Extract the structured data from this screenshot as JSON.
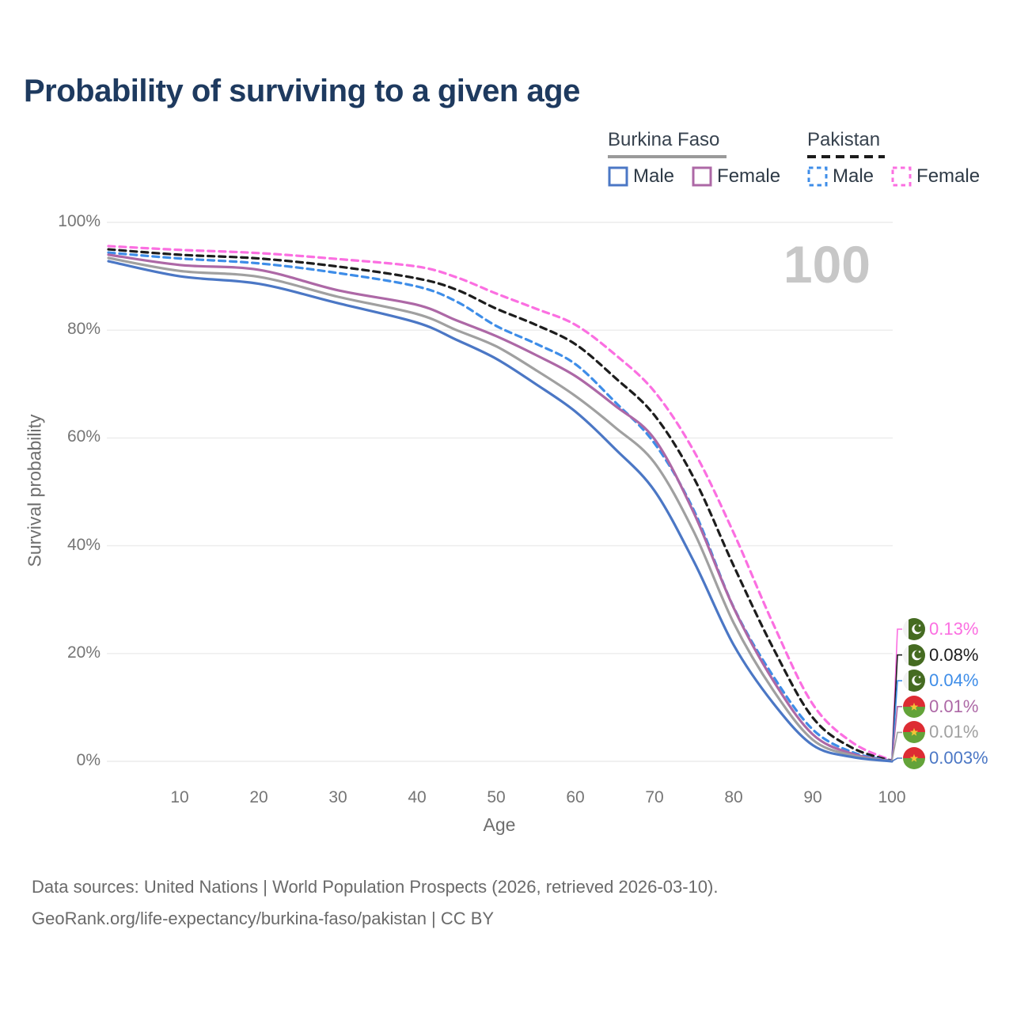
{
  "title": "Probability of surviving to a given age",
  "legend": {
    "groups": [
      {
        "country": "Burkina Faso",
        "line_style": "solid",
        "line_color": "#9a9a9a",
        "items": [
          {
            "label": "Male",
            "color": "#4b77c5",
            "dash": false
          },
          {
            "label": "Female",
            "color": "#ad68a6",
            "dash": false
          }
        ]
      },
      {
        "country": "Pakistan",
        "line_style": "dashed",
        "line_color": "#1b1b1b",
        "items": [
          {
            "label": "Male",
            "color": "#3e8de8",
            "dash": true
          },
          {
            "label": "Female",
            "color": "#fb6fe1",
            "dash": true
          }
        ]
      }
    ]
  },
  "chart_data": {
    "type": "line",
    "title": "Probability of surviving to a given age",
    "xlabel": "Age",
    "ylabel": "Survival probability",
    "xlim": [
      1,
      100
    ],
    "ylim": [
      0,
      100
    ],
    "grid": "horizontal",
    "x_ticks": [
      "10",
      "20",
      "30",
      "40",
      "50",
      "60",
      "70",
      "80",
      "90",
      "100"
    ],
    "y_tick_labels": [
      "100%",
      "80%",
      "60%",
      "40%",
      "20%",
      "0%"
    ],
    "age_indicator": "100",
    "x": [
      1,
      10,
      20,
      30,
      40,
      45,
      50,
      55,
      60,
      65,
      70,
      75,
      80,
      85,
      90,
      95,
      100
    ],
    "series": [
      {
        "name": "Pakistan — Female",
        "country": "Pakistan",
        "sex": "Female",
        "color": "#fb6fe1",
        "dash": true,
        "end_label": "0.13%",
        "values": [
          95.6,
          94.9,
          94.3,
          93.2,
          91.8,
          89.8,
          86.8,
          84.0,
          81.0,
          75.5,
          68.6,
          57.5,
          42.4,
          25.5,
          10.6,
          3.5,
          0.13
        ]
      },
      {
        "name": "Pakistan — Both sexes",
        "country": "Pakistan",
        "sex": "Both",
        "color": "#1d1d1d",
        "dash": true,
        "end_label": "0.08%",
        "values": [
          95.0,
          94.0,
          93.3,
          91.8,
          89.6,
          87.5,
          84.0,
          81.0,
          77.4,
          71.2,
          64.2,
          52.5,
          36.3,
          21.0,
          8.1,
          2.5,
          0.08
        ]
      },
      {
        "name": "Pakistan — Male",
        "country": "Pakistan",
        "sex": "Male",
        "color": "#3e8de8",
        "dash": true,
        "end_label": "0.04%",
        "values": [
          94.4,
          93.3,
          92.4,
          90.6,
          88.1,
          85.3,
          80.8,
          77.5,
          73.7,
          66.7,
          59.0,
          46.5,
          28.6,
          15.8,
          5.9,
          1.7,
          0.04
        ]
      },
      {
        "name": "Burkina Faso — Female",
        "country": "Burkina Faso",
        "sex": "Female",
        "color": "#ad68a6",
        "dash": false,
        "end_label": "0.01%",
        "values": [
          94.0,
          92.1,
          91.2,
          87.4,
          84.7,
          81.8,
          78.9,
          75.4,
          71.5,
          66.0,
          59.8,
          46.0,
          28.5,
          15.0,
          5.0,
          1.4,
          0.01
        ]
      },
      {
        "name": "Burkina Faso — Both sexes",
        "country": "Burkina Faso",
        "sex": "Both",
        "color": "#a0a0a0",
        "dash": false,
        "end_label": "0.01%",
        "values": [
          93.4,
          91.0,
          89.9,
          86.2,
          83.0,
          80.0,
          77.0,
          72.6,
          67.8,
          62.0,
          55.4,
          42.5,
          25.7,
          13.2,
          4.0,
          1.1,
          0.01
        ]
      },
      {
        "name": "Burkina Faso — Male",
        "country": "Burkina Faso",
        "sex": "Male",
        "color": "#4b77c5",
        "dash": false,
        "end_label": "0.003%",
        "values": [
          92.8,
          90.0,
          88.6,
          85.0,
          81.4,
          78.2,
          74.7,
          70.0,
          64.9,
          58.0,
          50.2,
          37.0,
          21.6,
          10.8,
          3.0,
          0.8,
          0.003
        ]
      }
    ]
  },
  "footer": {
    "line1": "Data sources: United Nations | World Population Prospects (2026, retrieved 2026-03-10).",
    "line2": "GeoRank.org/life-expectancy/burkina-faso/pakistan | CC BY"
  }
}
